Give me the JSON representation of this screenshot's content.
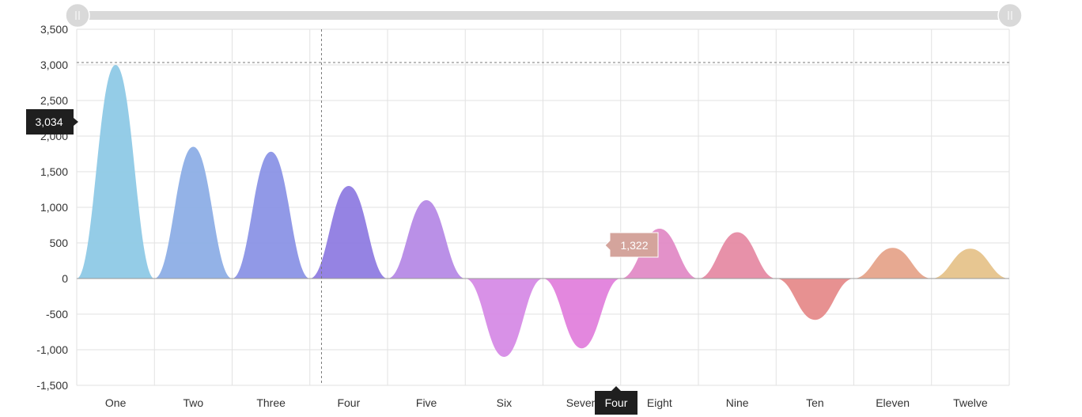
{
  "chart_data": {
    "type": "area",
    "categories": [
      "One",
      "Two",
      "Three",
      "Four",
      "Five",
      "Six",
      "Seven",
      "Eight",
      "Nine",
      "Ten",
      "Eleven",
      "Twelve"
    ],
    "series": [
      {
        "values": [
          3000,
          1850,
          1780,
          1300,
          1100,
          -1100,
          -980,
          700,
          650,
          -580,
          430,
          420
        ]
      }
    ],
    "colors": [
      "#8ec9e6",
      "#8daee6",
      "#8b94e6",
      "#8f7ce2",
      "#b68ae6",
      "#d68be6",
      "#e281dc",
      "#e28bc6",
      "#e68ba4",
      "#e68b8b",
      "#e6a48b",
      "#e6c38b"
    ],
    "ylim": [
      -1500,
      3500
    ],
    "y_ticks": [
      "3,500",
      "3,000",
      "2,500",
      "2,000",
      "1,500",
      "1,000",
      "500",
      "0",
      "-500",
      "-1,000",
      "-1,500"
    ],
    "grid": true,
    "crosshair": {
      "y_value": 3034,
      "y_label": "3,034",
      "x_category": "Four",
      "x_label": "Four"
    },
    "tooltip": {
      "label": "1,322",
      "color": "#d4a49c"
    },
    "scrollbar": {
      "start": 0,
      "end": 1
    }
  }
}
